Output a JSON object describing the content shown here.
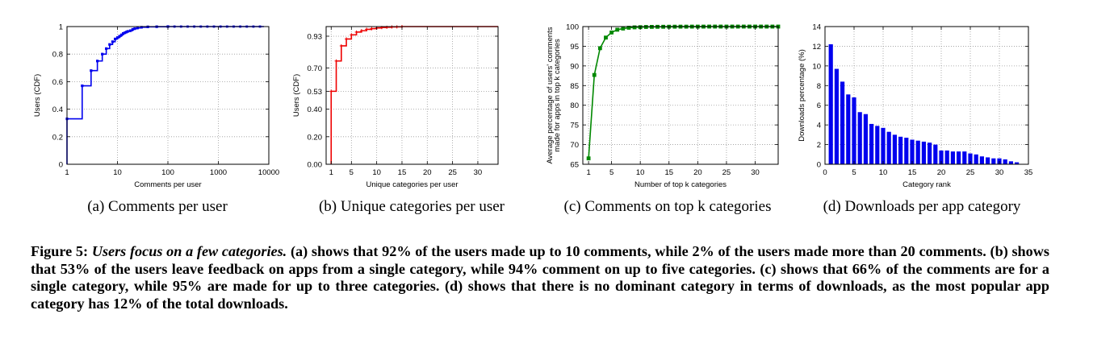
{
  "charts": [
    {
      "chart_data": {
        "type": "line",
        "title": "",
        "xlabel": "Comments per user",
        "ylabel": "Users (CDF)",
        "x_scale": "log",
        "xlim": [
          1,
          10000
        ],
        "ylim": [
          0,
          1
        ],
        "x_ticks": [
          "1",
          "10",
          "100",
          "1000",
          "10000"
        ],
        "y_ticks": [
          "0",
          "0.2",
          "0.4",
          "0.6",
          "0.8",
          "1"
        ],
        "grid": true,
        "legend": "none",
        "color": "#0000ee",
        "series": [
          {
            "x": [
              1,
              1,
              2,
              2,
              3,
              3,
              4,
              4,
              5,
              5,
              6,
              6,
              7,
              7,
              8,
              8,
              9,
              9,
              10,
              10,
              11,
              11,
              12,
              12,
              13,
              13,
              14,
              14,
              15,
              15,
              16,
              16,
              18,
              18,
              20,
              20,
              22,
              22,
              25,
              25,
              30,
              30,
              40,
              40,
              60,
              60,
              100,
              100,
              8000
            ],
            "y": [
              0,
              0.33,
              0.33,
              0.57,
              0.57,
              0.68,
              0.68,
              0.75,
              0.75,
              0.8,
              0.8,
              0.84,
              0.84,
              0.87,
              0.87,
              0.89,
              0.89,
              0.91,
              0.91,
              0.92,
              0.92,
              0.93,
              0.93,
              0.94,
              0.94,
              0.95,
              0.95,
              0.955,
              0.955,
              0.96,
              0.96,
              0.965,
              0.965,
              0.97,
              0.97,
              0.98,
              0.98,
              0.985,
              0.985,
              0.99,
              0.99,
              0.995,
              0.995,
              0.998,
              0.998,
              0.999,
              0.999,
              1.0,
              1.0
            ]
          }
        ]
      },
      "caption": "(a) Comments per user"
    },
    {
      "chart_data": {
        "type": "line",
        "title": "",
        "xlabel": "Unique categories per user",
        "ylabel": "Users (CDF)",
        "xlim": [
          0,
          34
        ],
        "ylim": [
          0,
          1
        ],
        "x_ticks": [
          1,
          5,
          10,
          15,
          20,
          25,
          30
        ],
        "y_ticks": [
          0.0,
          0.2,
          0.4,
          0.53,
          0.7,
          0.93
        ],
        "y_tick_labels": [
          "0.00",
          "0.20",
          "0.40",
          "0.53",
          "0.70",
          "0.93"
        ],
        "grid": true,
        "legend": "none",
        "color": "#ee0000",
        "series": [
          {
            "x": [
              1,
              1,
              2,
              2,
              3,
              3,
              4,
              4,
              5,
              5,
              6,
              6,
              7,
              7,
              8,
              8,
              9,
              9,
              10,
              10,
              11,
              11,
              12,
              12,
              13,
              13,
              14,
              14,
              15,
              15,
              34
            ],
            "y": [
              0,
              0.53,
              0.53,
              0.75,
              0.75,
              0.86,
              0.86,
              0.91,
              0.91,
              0.94,
              0.94,
              0.96,
              0.96,
              0.97,
              0.97,
              0.98,
              0.98,
              0.985,
              0.985,
              0.99,
              0.99,
              0.993,
              0.993,
              0.995,
              0.995,
              0.997,
              0.997,
              0.998,
              0.998,
              1.0,
              1.0
            ]
          }
        ]
      },
      "caption": "(b) Unique categories per user"
    },
    {
      "chart_data": {
        "type": "line",
        "title": "",
        "xlabel": "Number of top k categories",
        "ylabel": [
          "Average percentage of users' comments",
          "made for apps in top k categories"
        ],
        "xlim": [
          0,
          34
        ],
        "ylim": [
          65,
          100
        ],
        "x_ticks": [
          1,
          5,
          10,
          15,
          20,
          25,
          30
        ],
        "y_ticks": [
          65,
          70,
          75,
          80,
          85,
          90,
          95,
          100
        ],
        "grid": true,
        "legend": "none",
        "color": "#008800",
        "series": [
          {
            "x": [
              1,
              2,
              3,
              4,
              5,
              6,
              7,
              8,
              9,
              10,
              11,
              12,
              13,
              14,
              15,
              16,
              17,
              18,
              19,
              20,
              21,
              22,
              23,
              24,
              25,
              26,
              27,
              28,
              29,
              30,
              31,
              32,
              33,
              34
            ],
            "y": [
              66.5,
              87.7,
              94.5,
              97.2,
              98.5,
              99.2,
              99.5,
              99.7,
              99.8,
              99.85,
              99.9,
              99.92,
              99.94,
              99.95,
              99.96,
              99.97,
              99.98,
              99.98,
              99.99,
              99.99,
              99.99,
              100,
              100,
              100,
              100,
              100,
              100,
              100,
              100,
              100,
              100,
              100,
              100,
              100
            ]
          }
        ]
      },
      "caption": "(c) Comments on top k categories"
    },
    {
      "chart_data": {
        "type": "bar",
        "title": "",
        "xlabel": "Category rank",
        "ylabel": "Downloads percentage (%)",
        "xlim": [
          0,
          35
        ],
        "ylim": [
          0,
          14
        ],
        "x_ticks": [
          0,
          5,
          10,
          15,
          20,
          25,
          30,
          35
        ],
        "y_ticks": [
          0,
          2,
          4,
          6,
          8,
          10,
          12,
          14
        ],
        "grid": true,
        "legend": "none",
        "color": "#0000ee",
        "categories": [
          1,
          2,
          3,
          4,
          5,
          6,
          7,
          8,
          9,
          10,
          11,
          12,
          13,
          14,
          15,
          16,
          17,
          18,
          19,
          20,
          21,
          22,
          23,
          24,
          25,
          26,
          27,
          28,
          29,
          30,
          31,
          32,
          33
        ],
        "values": [
          12.2,
          9.7,
          8.4,
          7.1,
          6.8,
          5.3,
          5.1,
          4.1,
          3.9,
          3.7,
          3.3,
          3.0,
          2.8,
          2.7,
          2.5,
          2.4,
          2.3,
          2.2,
          2.0,
          1.4,
          1.4,
          1.3,
          1.3,
          1.3,
          1.1,
          1.0,
          0.8,
          0.7,
          0.6,
          0.6,
          0.5,
          0.3,
          0.2
        ]
      },
      "caption": "(d) Downloads per app category"
    }
  ],
  "figure_caption": {
    "label": "Figure 5:",
    "italic": "Users focus on a few categories.",
    "text": "(a) shows that 92% of the users made up to 10 comments, while 2% of the users made more than 20 comments. (b) shows that 53% of the users leave feedback on apps from a single category, while 94% comment on up to five categories. (c) shows that 66% of the comments are for a single category, while 95% are made for up to three categories. (d) shows that there is no dominant category in terms of downloads, as the most popular app category has 12% of the total downloads."
  }
}
